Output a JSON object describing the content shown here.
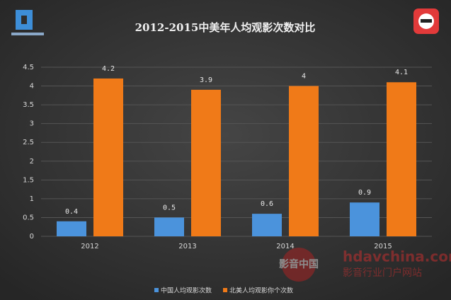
{
  "chart_data": {
    "type": "bar",
    "title": "2012-2015中美年人均观影次数对比",
    "categories": [
      "2012",
      "2013",
      "2014",
      "2015"
    ],
    "series": [
      {
        "name": "中国人均观影次数",
        "color": "#4b93dc",
        "values": [
          0.4,
          0.5,
          0.6,
          0.9
        ]
      },
      {
        "name": "北美人均观影你个次数",
        "color": "#f07a18",
        "values": [
          4.2,
          3.9,
          4,
          4.1
        ]
      }
    ],
    "ylim": [
      0,
      4.5
    ],
    "yticks": [
      0,
      0.5,
      1,
      1.5,
      2,
      2.5,
      3,
      3.5,
      4,
      4.5
    ],
    "grid": true,
    "legend": "bottom",
    "watermark": {
      "logo": "影音中国",
      "site": "hdavchina.com",
      "slogan": "影音行业门户网站"
    }
  }
}
